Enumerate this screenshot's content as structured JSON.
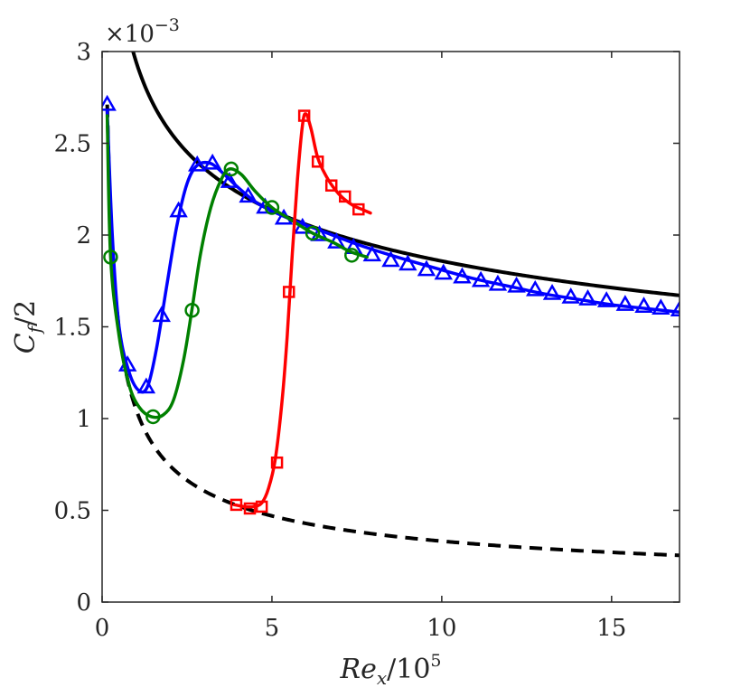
{
  "chart_data": {
    "type": "line",
    "xlabel_main": "Re",
    "xlabel_sub": "x",
    "xlabel_rest": "/10",
    "xlabel_sup": "5",
    "ylabel_main": "C",
    "ylabel_sub": "f",
    "ylabel_rest": "/2",
    "y_multiplier_base": "×10",
    "y_multiplier_exp": "−3",
    "xlim": [
      0,
      17
    ],
    "ylim": [
      0,
      3
    ],
    "xticks": [
      0,
      5,
      10,
      15
    ],
    "xtick_labels": [
      "0",
      "5",
      "10",
      "15"
    ],
    "yticks": [
      0,
      0.5,
      1,
      1.5,
      2,
      2.5,
      3
    ],
    "ytick_labels": [
      "0",
      "0.5",
      "1",
      "1.5",
      "2",
      "2.5",
      "3"
    ],
    "grid": false,
    "colors": {
      "turbulent": "#000000",
      "laminar": "#000000",
      "blue": "#0000ff",
      "green": "#008000",
      "red": "#ff0000",
      "axis": "#262626"
    },
    "reference_curves": [
      {
        "style": "solid",
        "color": "#000000",
        "formula": "turbulent",
        "coef": 0.02945,
        "exp": -0.2,
        "x_start": 0.9,
        "x_end": 17
      },
      {
        "style": "dashed",
        "color": "#000000",
        "formula": "laminar",
        "coef": 0.332,
        "exp": -0.5,
        "x_start": 0.15,
        "x_end": 17
      }
    ],
    "series": [
      {
        "color": "#0000ff",
        "marker": "triangle",
        "curve": [
          [
            0.15,
            2.68
          ],
          [
            0.3,
            2.0
          ],
          [
            0.5,
            1.5
          ],
          [
            0.8,
            1.25
          ],
          [
            1.1,
            1.15
          ],
          [
            1.35,
            1.18
          ],
          [
            1.6,
            1.38
          ],
          [
            1.9,
            1.72
          ],
          [
            2.2,
            2.05
          ],
          [
            2.5,
            2.28
          ],
          [
            2.8,
            2.38
          ],
          [
            3.2,
            2.39
          ],
          [
            3.6,
            2.33
          ],
          [
            4.0,
            2.26
          ],
          [
            4.6,
            2.17
          ],
          [
            5.5,
            2.09
          ],
          [
            6.5,
            2.02
          ],
          [
            7.5,
            1.95
          ],
          [
            8.5,
            1.89
          ],
          [
            10,
            1.81
          ],
          [
            11,
            1.76
          ],
          [
            12,
            1.72
          ],
          [
            13,
            1.68
          ],
          [
            14,
            1.65
          ],
          [
            15,
            1.62
          ],
          [
            16,
            1.6
          ],
          [
            17,
            1.58
          ]
        ],
        "markers": [
          [
            0.15,
            2.71
          ],
          [
            0.75,
            1.29
          ],
          [
            1.3,
            1.17
          ],
          [
            1.75,
            1.56
          ],
          [
            2.25,
            2.13
          ],
          [
            2.8,
            2.38
          ],
          [
            3.25,
            2.39
          ],
          [
            3.75,
            2.29
          ],
          [
            4.3,
            2.21
          ],
          [
            4.8,
            2.15
          ],
          [
            5.35,
            2.09
          ],
          [
            5.9,
            2.04
          ],
          [
            6.4,
            2.0
          ],
          [
            6.9,
            1.96
          ],
          [
            7.4,
            1.93
          ],
          [
            7.95,
            1.89
          ],
          [
            8.5,
            1.86
          ],
          [
            9.0,
            1.84
          ],
          [
            9.55,
            1.81
          ],
          [
            10.05,
            1.79
          ],
          [
            10.6,
            1.77
          ],
          [
            11.15,
            1.75
          ],
          [
            11.65,
            1.73
          ],
          [
            12.2,
            1.72
          ],
          [
            12.75,
            1.7
          ],
          [
            13.25,
            1.68
          ],
          [
            13.8,
            1.66
          ],
          [
            14.3,
            1.65
          ],
          [
            14.85,
            1.64
          ],
          [
            15.4,
            1.62
          ],
          [
            15.95,
            1.61
          ],
          [
            16.45,
            1.6
          ],
          [
            17.0,
            1.59
          ]
        ]
      },
      {
        "color": "#008000",
        "marker": "circle",
        "curve": [
          [
            0.15,
            2.65
          ],
          [
            0.25,
            1.88
          ],
          [
            0.5,
            1.45
          ],
          [
            0.8,
            1.18
          ],
          [
            1.1,
            1.06
          ],
          [
            1.45,
            1.01
          ],
          [
            1.8,
            1.02
          ],
          [
            2.1,
            1.1
          ],
          [
            2.4,
            1.32
          ],
          [
            2.65,
            1.6
          ],
          [
            2.9,
            1.9
          ],
          [
            3.2,
            2.15
          ],
          [
            3.5,
            2.3
          ],
          [
            3.75,
            2.36
          ],
          [
            4.1,
            2.33
          ],
          [
            4.5,
            2.24
          ],
          [
            5.0,
            2.15
          ],
          [
            5.5,
            2.09
          ],
          [
            6.2,
            2.01
          ],
          [
            6.8,
            1.96
          ],
          [
            7.3,
            1.91
          ],
          [
            7.8,
            1.88
          ]
        ],
        "markers": [
          [
            0.25,
            1.88
          ],
          [
            1.5,
            1.01
          ],
          [
            2.65,
            1.59
          ],
          [
            3.8,
            2.36
          ],
          [
            5.0,
            2.15
          ],
          [
            6.2,
            2.01
          ],
          [
            7.35,
            1.89
          ]
        ]
      },
      {
        "color": "#ff0000",
        "marker": "square",
        "curve": [
          [
            3.9,
            0.53
          ],
          [
            4.2,
            0.52
          ],
          [
            4.45,
            0.52
          ],
          [
            4.7,
            0.54
          ],
          [
            4.9,
            0.62
          ],
          [
            5.1,
            0.78
          ],
          [
            5.3,
            1.1
          ],
          [
            5.45,
            1.45
          ],
          [
            5.6,
            1.9
          ],
          [
            5.75,
            2.3
          ],
          [
            5.9,
            2.6
          ],
          [
            6.0,
            2.66
          ],
          [
            6.15,
            2.58
          ],
          [
            6.35,
            2.42
          ],
          [
            6.6,
            2.32
          ],
          [
            6.85,
            2.25
          ],
          [
            7.1,
            2.2
          ],
          [
            7.4,
            2.16
          ],
          [
            7.65,
            2.14
          ],
          [
            7.9,
            2.12
          ]
        ],
        "markers": [
          [
            3.95,
            0.53
          ],
          [
            4.35,
            0.51
          ],
          [
            4.7,
            0.52
          ],
          [
            5.15,
            0.76
          ],
          [
            5.5,
            1.69
          ],
          [
            5.95,
            2.65
          ],
          [
            6.35,
            2.4
          ],
          [
            6.75,
            2.27
          ],
          [
            7.15,
            2.21
          ],
          [
            7.55,
            2.14
          ]
        ]
      }
    ]
  }
}
